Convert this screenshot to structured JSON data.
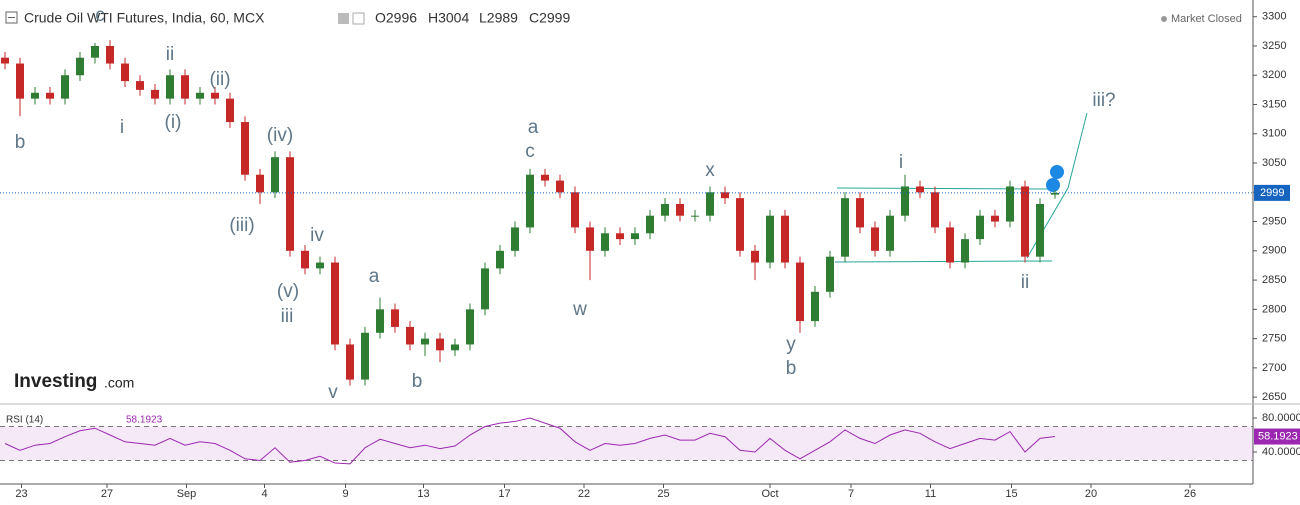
{
  "header": {
    "title": "Crude Oil WTI Futures, India, 60, MCX",
    "open": "O2996",
    "high": "H3004",
    "low": "L2989",
    "close": "C2999",
    "status": "Market Closed",
    "logo": "Investing",
    "logo_suffix": ".com"
  },
  "annotations": [
    "b",
    "c",
    "ii",
    "i",
    "(i)",
    "(ii)",
    "(iv)",
    "(iii)",
    "iv",
    "(v)",
    "iii",
    "v",
    "a",
    "b",
    "a",
    "c",
    "w",
    "x",
    "y",
    "b",
    "i",
    "ii",
    "iii?"
  ],
  "chart_data": [
    {
      "type": "candlestick",
      "up_color": "#2e7d32",
      "down_color": "#c62828",
      "open": [
        3230,
        3220,
        3160,
        3170,
        3160,
        3200,
        3230,
        3250,
        3220,
        3190,
        3175,
        3160,
        3200,
        3160,
        3170,
        3160,
        3120,
        3030,
        3000,
        3060,
        2900,
        2870,
        2880,
        2740,
        2680,
        2760,
        2800,
        2770,
        2740,
        2750,
        2730,
        2740,
        2800,
        2870,
        2900,
        2940,
        3030,
        3020,
        3000,
        2940,
        2900,
        2930,
        2920,
        2930,
        2960,
        2980,
        2960,
        2960,
        3000,
        2990,
        2900,
        2880,
        2960,
        2880,
        2780,
        2830,
        2890,
        2990,
        2940,
        2900,
        2960,
        3010,
        3000,
        2940,
        2880,
        2920,
        2960,
        2950,
        3010,
        2890,
        2996
      ],
      "high": [
        3240,
        3230,
        3180,
        3180,
        3210,
        3240,
        3255,
        3260,
        3230,
        3200,
        3185,
        3210,
        3210,
        3180,
        3180,
        3170,
        3130,
        3040,
        3070,
        3070,
        2910,
        2890,
        2890,
        2750,
        2770,
        2820,
        2810,
        2780,
        2760,
        2760,
        2750,
        2810,
        2880,
        2910,
        2950,
        3040,
        3040,
        3030,
        3010,
        2950,
        2940,
        2940,
        2940,
        2970,
        2990,
        2990,
        2970,
        3010,
        3010,
        3000,
        2910,
        2970,
        2970,
        2890,
        2840,
        2900,
        3000,
        3000,
        2950,
        2970,
        3030,
        3020,
        3010,
        2950,
        2930,
        2970,
        2970,
        3020,
        3020,
        2990,
        3004
      ],
      "low": [
        3210,
        3130,
        3150,
        3150,
        3150,
        3190,
        3220,
        3210,
        3180,
        3165,
        3150,
        3150,
        3150,
        3150,
        3150,
        3110,
        3020,
        2980,
        2990,
        2890,
        2860,
        2860,
        2730,
        2670,
        2670,
        2750,
        2760,
        2730,
        2720,
        2710,
        2720,
        2730,
        2790,
        2860,
        2890,
        2930,
        3010,
        2990,
        2930,
        2850,
        2890,
        2910,
        2910,
        2920,
        2950,
        2950,
        2950,
        2950,
        2980,
        2890,
        2850,
        2870,
        2870,
        2760,
        2770,
        2820,
        2880,
        2930,
        2890,
        2890,
        2950,
        2990,
        2930,
        2870,
        2870,
        2910,
        2940,
        2940,
        2880,
        2880,
        2989
      ],
      "close": [
        3220,
        3160,
        3170,
        3160,
        3200,
        3230,
        3250,
        3220,
        3190,
        3175,
        3160,
        3200,
        3160,
        3170,
        3160,
        3120,
        3030,
        3000,
        3060,
        2900,
        2870,
        2880,
        2740,
        2680,
        2760,
        2800,
        2770,
        2740,
        2750,
        2730,
        2740,
        2800,
        2870,
        2900,
        2940,
        3030,
        3020,
        3000,
        2940,
        2900,
        2930,
        2920,
        2930,
        2960,
        2980,
        2960,
        2960,
        3000,
        2990,
        2900,
        2880,
        2960,
        2880,
        2780,
        2830,
        2890,
        2990,
        2940,
        2900,
        2960,
        3010,
        3000,
        2940,
        2880,
        2920,
        2960,
        2950,
        3010,
        2890,
        2980,
        2999
      ],
      "ylim": [
        2640,
        3320
      ],
      "yticks": [
        3300,
        3250,
        3200,
        3150,
        3100,
        3050,
        3000,
        2950,
        2900,
        2850,
        2800,
        2750,
        2700,
        2650
      ],
      "xlim": [
        0,
        83
      ],
      "xticks": [
        {
          "value": 1.1,
          "label": "23"
        },
        {
          "value": 6.8,
          "label": "27"
        },
        {
          "value": 12.1,
          "label": "Sep"
        },
        {
          "value": 17.3,
          "label": "4"
        },
        {
          "value": 22.7,
          "label": "9"
        },
        {
          "value": 27.9,
          "label": "13"
        },
        {
          "value": 33.3,
          "label": "17"
        },
        {
          "value": 38.6,
          "label": "22"
        },
        {
          "value": 43.9,
          "label": "25"
        },
        {
          "value": 51,
          "label": "Oct"
        },
        {
          "value": 56.4,
          "label": "7"
        },
        {
          "value": 61.7,
          "label": "11"
        },
        {
          "value": 67.1,
          "label": "15"
        },
        {
          "value": 72.4,
          "label": "20"
        },
        {
          "value": 79,
          "label": "26"
        }
      ]
    },
    {
      "type": "line",
      "name": "RSI (14)",
      "color": "#9c27b0",
      "values": [
        50,
        42,
        48,
        50,
        58,
        65,
        68,
        60,
        52,
        50,
        48,
        56,
        48,
        52,
        50,
        42,
        32,
        30,
        45,
        28,
        30,
        35,
        27,
        26,
        45,
        55,
        50,
        45,
        48,
        44,
        47,
        60,
        70,
        74,
        76,
        80,
        74,
        68,
        52,
        42,
        50,
        48,
        50,
        56,
        60,
        54,
        54,
        62,
        58,
        42,
        40,
        56,
        42,
        32,
        42,
        52,
        66,
        56,
        50,
        60,
        66,
        62,
        52,
        44,
        50,
        56,
        54,
        64,
        40,
        56,
        58.1923
      ],
      "ylim": [
        7,
        93
      ],
      "yticks": [
        {
          "value": 80,
          "label": "80.0000"
        },
        {
          "value": 40,
          "label": "40.0000"
        }
      ],
      "band": [
        30,
        70
      ]
    }
  ]
}
